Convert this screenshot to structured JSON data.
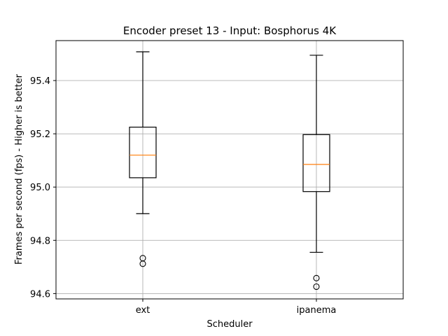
{
  "chart_data": {
    "type": "box",
    "title": "Encoder preset 13 - Input: Bosphorus 4K",
    "xlabel": "Scheduler",
    "ylabel": "Frames per second (fps) - Higher is better",
    "categories": [
      "ext",
      "ipanema"
    ],
    "ylim": [
      94.58,
      95.55
    ],
    "yticks": [
      94.6,
      94.8,
      95.0,
      95.2,
      95.4
    ],
    "ytick_labels": [
      "94.6",
      "94.8",
      "95.0",
      "95.2",
      "95.4"
    ],
    "grid": true,
    "boxes": [
      {
        "category": "ext",
        "whisker_low": 94.9,
        "q1": 95.035,
        "median": 95.12,
        "q3": 95.225,
        "whisker_high": 95.508,
        "outliers": [
          94.712,
          94.733
        ]
      },
      {
        "category": "ipanema",
        "whisker_low": 94.755,
        "q1": 94.983,
        "median": 95.085,
        "q3": 95.197,
        "whisker_high": 95.495,
        "outliers": [
          94.626,
          94.658
        ]
      }
    ],
    "colors": {
      "box": "#000000",
      "median": "#ff7f0e",
      "grid": "#b0b0b0"
    }
  }
}
